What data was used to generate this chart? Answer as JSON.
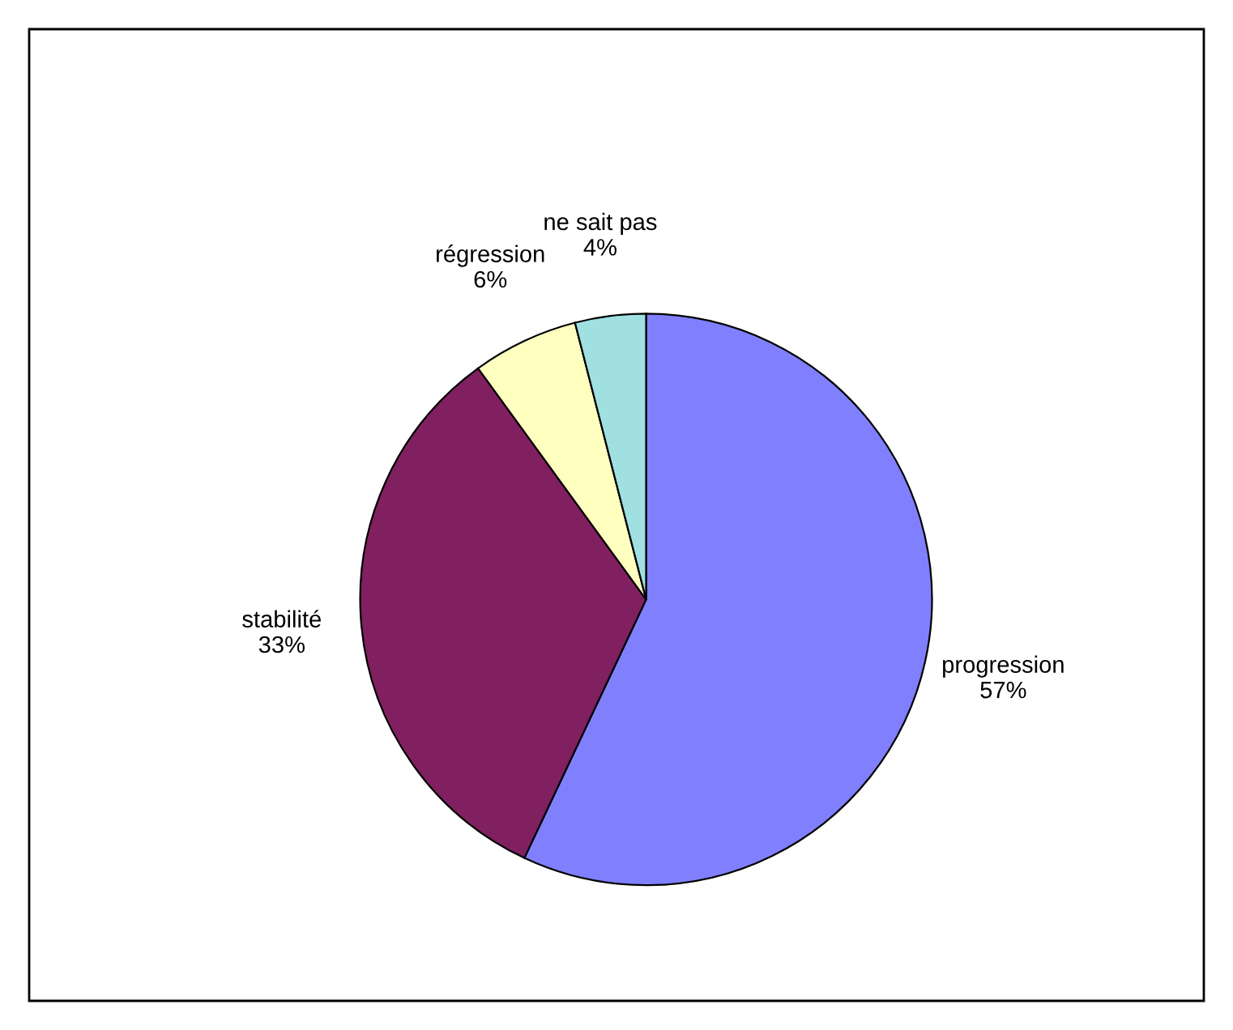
{
  "chart_data": {
    "type": "pie",
    "categories": [
      "progression",
      "stabilité",
      "régression",
      "ne sait pas"
    ],
    "values": [
      57,
      33,
      6,
      4
    ],
    "value_labels": [
      "57%",
      "33%",
      "6%",
      "4%"
    ],
    "colors": [
      "#8080ff",
      "#802060",
      "#ffffc0",
      "#a0e0e0"
    ],
    "legend": false
  }
}
